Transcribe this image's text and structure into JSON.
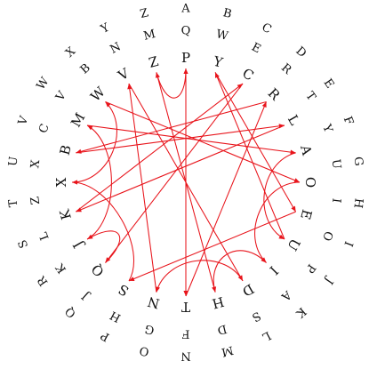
{
  "diagram": {
    "outer_ring": [
      "A",
      "B",
      "C",
      "D",
      "E",
      "F",
      "G",
      "H",
      "I",
      "J",
      "K",
      "L",
      "M",
      "N",
      "O",
      "P",
      "Q",
      "R",
      "S",
      "T",
      "U",
      "V",
      "W",
      "X",
      "Y",
      "Z"
    ],
    "middle_ring": [
      "Q",
      "W",
      "E",
      "R",
      "T",
      "Y",
      "U",
      "I",
      "O",
      "P",
      "A",
      "S",
      "D",
      "F",
      "G",
      "H",
      "J",
      "K",
      "L",
      "Z",
      "X",
      "C",
      "V",
      "B",
      "N",
      "M"
    ],
    "plugboard_ring": [
      "P",
      "Y",
      "C",
      "R",
      "L",
      "A",
      "O",
      "E",
      "U",
      "I",
      "D",
      "H",
      "T",
      "N",
      "S",
      "Q",
      "J",
      "K",
      "X",
      "B",
      "M",
      "W",
      "V",
      "Z"
    ],
    "wire_color": "#e8141b",
    "connections": [
      [
        "P",
        "T"
      ],
      [
        "Y",
        "E"
      ],
      [
        "C",
        "Q"
      ],
      [
        "R",
        "B"
      ],
      [
        "L",
        "K"
      ],
      [
        "A",
        "U"
      ],
      [
        "O",
        "I"
      ],
      [
        "E",
        "S"
      ],
      [
        "U",
        "Y"
      ],
      [
        "I",
        "H"
      ],
      [
        "D",
        "N"
      ],
      [
        "H",
        "Z"
      ],
      [
        "T",
        "R"
      ],
      [
        "N",
        "V"
      ],
      [
        "S",
        "X"
      ],
      [
        "Q",
        "J"
      ],
      [
        "J",
        "M"
      ],
      [
        "K",
        "C"
      ],
      [
        "X",
        "W"
      ],
      [
        "B",
        "L"
      ],
      [
        "M",
        "A"
      ],
      [
        "W",
        "O"
      ],
      [
        "V",
        "D"
      ],
      [
        "Z",
        "P"
      ]
    ]
  }
}
